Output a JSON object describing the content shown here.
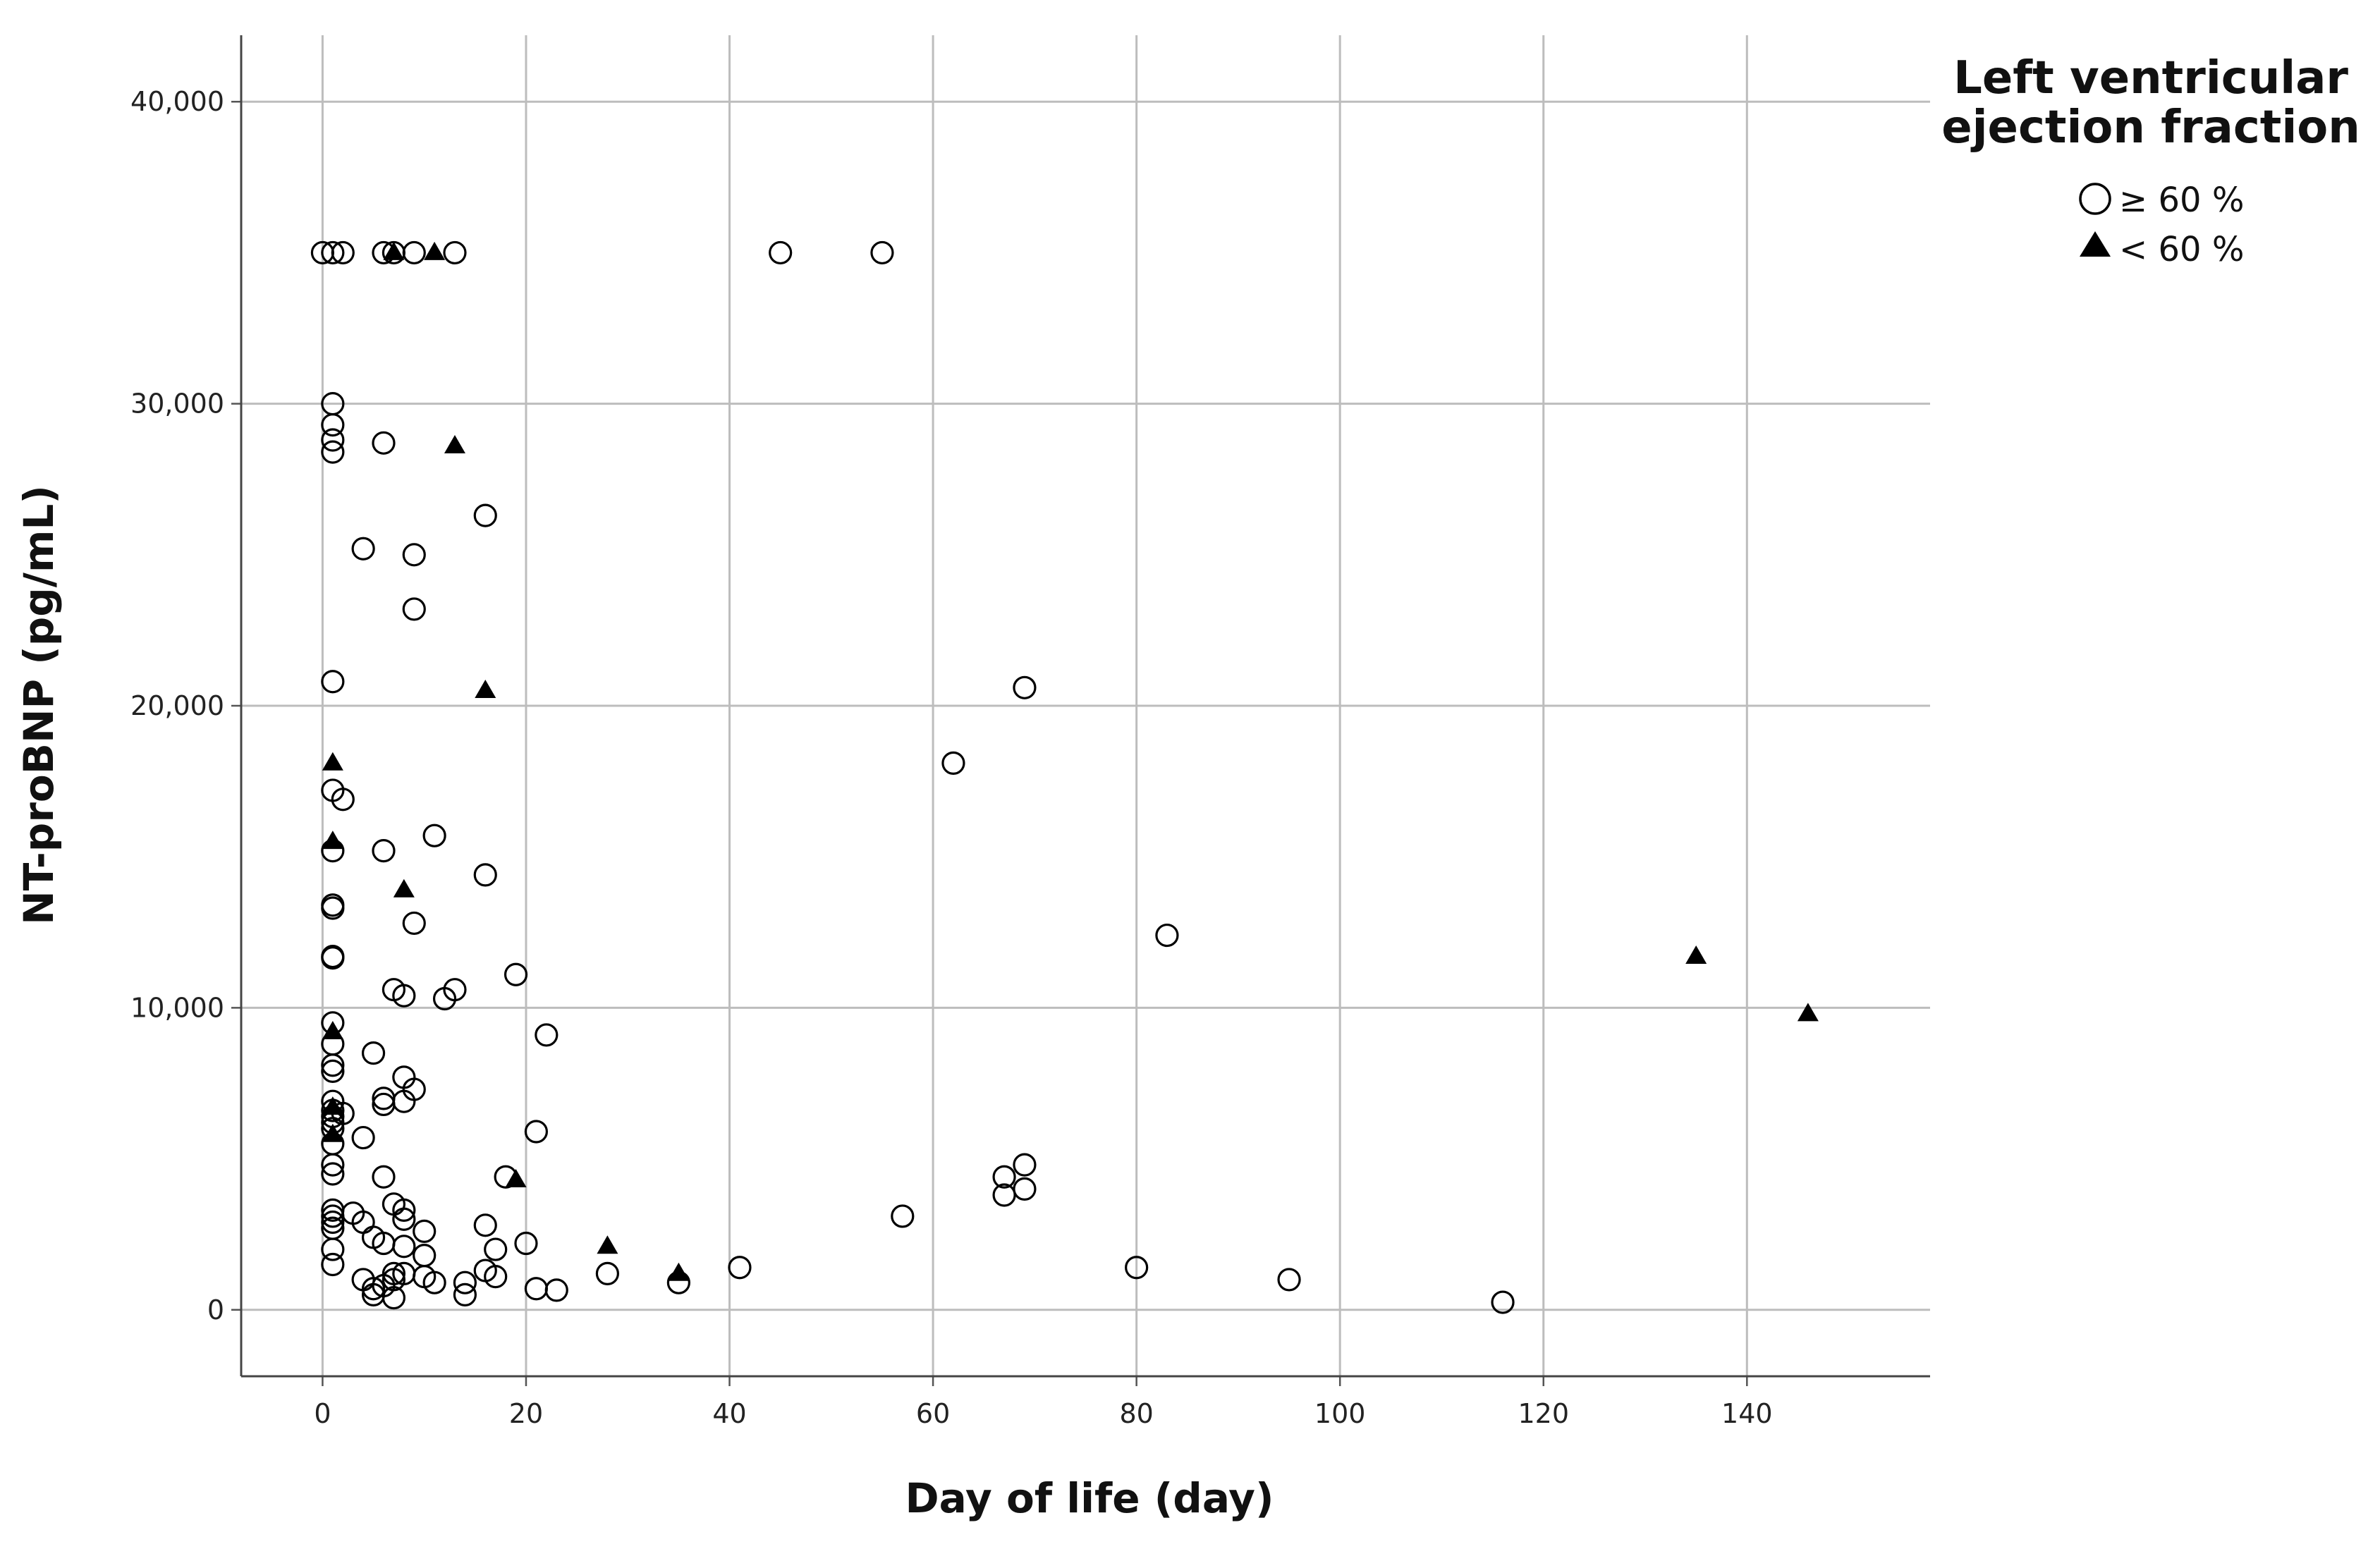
{
  "chart_data": {
    "type": "scatter",
    "title": "",
    "xlabel": "Day of life (day)",
    "ylabel": "NT-proBNP (pg/mL)",
    "xlim": [
      -8,
      158
    ],
    "ylim": [
      -2200,
      42200
    ],
    "x_ticks": [
      0,
      20,
      40,
      60,
      80,
      100,
      120,
      140
    ],
    "x_tick_labels": [
      "0",
      "20",
      "40",
      "60",
      "80",
      "100",
      "120",
      "140"
    ],
    "y_ticks": [
      0,
      10000,
      20000,
      30000,
      40000
    ],
    "y_tick_labels": [
      "0",
      "10,000",
      "20,000",
      "30,000",
      "40,000"
    ],
    "grid": true,
    "legend_position": "top-right, outside plot",
    "legend_title": "Left ventricular ejection fraction",
    "series": [
      {
        "name": "≥ 60 %",
        "marker": "open-circle",
        "color": "#000000",
        "points": [
          {
            "x": 0,
            "y": 35000
          },
          {
            "x": 1,
            "y": 35000
          },
          {
            "x": 2,
            "y": 35000
          },
          {
            "x": 6,
            "y": 35000
          },
          {
            "x": 7,
            "y": 35000
          },
          {
            "x": 9,
            "y": 35000
          },
          {
            "x": 13,
            "y": 35000
          },
          {
            "x": 45,
            "y": 35000
          },
          {
            "x": 55,
            "y": 35000
          },
          {
            "x": 1,
            "y": 30000
          },
          {
            "x": 1,
            "y": 29300
          },
          {
            "x": 1,
            "y": 28800
          },
          {
            "x": 1,
            "y": 28400
          },
          {
            "x": 6,
            "y": 28700
          },
          {
            "x": 16,
            "y": 26300
          },
          {
            "x": 4,
            "y": 25200
          },
          {
            "x": 9,
            "y": 25000
          },
          {
            "x": 9,
            "y": 23200
          },
          {
            "x": 1,
            "y": 20800
          },
          {
            "x": 69,
            "y": 20600
          },
          {
            "x": 62,
            "y": 18100
          },
          {
            "x": 1,
            "y": 17200
          },
          {
            "x": 2,
            "y": 16900
          },
          {
            "x": 11,
            "y": 15700
          },
          {
            "x": 1,
            "y": 15200
          },
          {
            "x": 6,
            "y": 15200
          },
          {
            "x": 16,
            "y": 14400
          },
          {
            "x": 1,
            "y": 13400
          },
          {
            "x": 1,
            "y": 13300
          },
          {
            "x": 9,
            "y": 12800
          },
          {
            "x": 83,
            "y": 12400
          },
          {
            "x": 1,
            "y": 11700
          },
          {
            "x": 1,
            "y": 11650
          },
          {
            "x": 19,
            "y": 11100
          },
          {
            "x": 7,
            "y": 10600
          },
          {
            "x": 13,
            "y": 10600
          },
          {
            "x": 8,
            "y": 10400
          },
          {
            "x": 12,
            "y": 10300
          },
          {
            "x": 1,
            "y": 9500
          },
          {
            "x": 22,
            "y": 9100
          },
          {
            "x": 1,
            "y": 8800
          },
          {
            "x": 5,
            "y": 8500
          },
          {
            "x": 1,
            "y": 8100
          },
          {
            "x": 1,
            "y": 7900
          },
          {
            "x": 8,
            "y": 7700
          },
          {
            "x": 9,
            "y": 7300
          },
          {
            "x": 6,
            "y": 7000
          },
          {
            "x": 8,
            "y": 6900
          },
          {
            "x": 1,
            "y": 6900
          },
          {
            "x": 6,
            "y": 6800
          },
          {
            "x": 1,
            "y": 6600
          },
          {
            "x": 2,
            "y": 6500
          },
          {
            "x": 1,
            "y": 6400
          },
          {
            "x": 1,
            "y": 6200
          },
          {
            "x": 1,
            "y": 6000
          },
          {
            "x": 21,
            "y": 5900
          },
          {
            "x": 4,
            "y": 5700
          },
          {
            "x": 1,
            "y": 5500
          },
          {
            "x": 1,
            "y": 4800
          },
          {
            "x": 69,
            "y": 4800
          },
          {
            "x": 1,
            "y": 4500
          },
          {
            "x": 6,
            "y": 4400
          },
          {
            "x": 18,
            "y": 4400
          },
          {
            "x": 67,
            "y": 4400
          },
          {
            "x": 69,
            "y": 4000
          },
          {
            "x": 67,
            "y": 3800
          },
          {
            "x": 7,
            "y": 3500
          },
          {
            "x": 1,
            "y": 3300
          },
          {
            "x": 8,
            "y": 3300
          },
          {
            "x": 3,
            "y": 3200
          },
          {
            "x": 57,
            "y": 3100
          },
          {
            "x": 1,
            "y": 3100
          },
          {
            "x": 8,
            "y": 3000
          },
          {
            "x": 1,
            "y": 2900
          },
          {
            "x": 4,
            "y": 2900
          },
          {
            "x": 16,
            "y": 2800
          },
          {
            "x": 1,
            "y": 2700
          },
          {
            "x": 10,
            "y": 2600
          },
          {
            "x": 5,
            "y": 2400
          },
          {
            "x": 20,
            "y": 2200
          },
          {
            "x": 6,
            "y": 2200
          },
          {
            "x": 8,
            "y": 2100
          },
          {
            "x": 1,
            "y": 2000
          },
          {
            "x": 17,
            "y": 2000
          },
          {
            "x": 10,
            "y": 1800
          },
          {
            "x": 1,
            "y": 1500
          },
          {
            "x": 41,
            "y": 1400
          },
          {
            "x": 80,
            "y": 1400
          },
          {
            "x": 16,
            "y": 1300
          },
          {
            "x": 28,
            "y": 1200
          },
          {
            "x": 7,
            "y": 1200
          },
          {
            "x": 8,
            "y": 1200
          },
          {
            "x": 10,
            "y": 1100
          },
          {
            "x": 17,
            "y": 1100
          },
          {
            "x": 95,
            "y": 1000
          },
          {
            "x": 7,
            "y": 1000
          },
          {
            "x": 4,
            "y": 1000
          },
          {
            "x": 11,
            "y": 900
          },
          {
            "x": 14,
            "y": 900
          },
          {
            "x": 35,
            "y": 900
          },
          {
            "x": 6,
            "y": 800
          },
          {
            "x": 21,
            "y": 700
          },
          {
            "x": 23,
            "y": 650
          },
          {
            "x": 5,
            "y": 700
          },
          {
            "x": 5,
            "y": 500
          },
          {
            "x": 14,
            "y": 500
          },
          {
            "x": 7,
            "y": 400
          },
          {
            "x": 116,
            "y": 250
          }
        ]
      },
      {
        "name": "< 60 %",
        "marker": "filled-triangle",
        "color": "#000000",
        "points": [
          {
            "x": 7,
            "y": 35000
          },
          {
            "x": 11,
            "y": 35000
          },
          {
            "x": 13,
            "y": 28600
          },
          {
            "x": 16,
            "y": 20500
          },
          {
            "x": 1,
            "y": 18100
          },
          {
            "x": 1,
            "y": 15500
          },
          {
            "x": 8,
            "y": 13900
          },
          {
            "x": 135,
            "y": 11700
          },
          {
            "x": 146,
            "y": 9800
          },
          {
            "x": 1,
            "y": 9200
          },
          {
            "x": 1,
            "y": 6700
          },
          {
            "x": 1,
            "y": 5800
          },
          {
            "x": 19,
            "y": 4300
          },
          {
            "x": 28,
            "y": 2100
          },
          {
            "x": 35,
            "y": 1200
          }
        ]
      }
    ]
  }
}
